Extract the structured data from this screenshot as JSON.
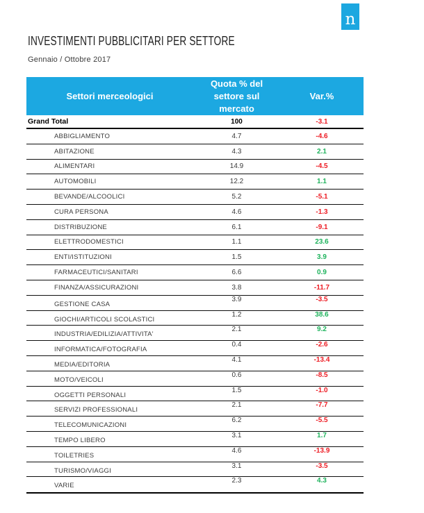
{
  "logo": {
    "letter": "n"
  },
  "title": "INVESTIMENTI PUBBLICITARI PER SETTORE",
  "subtitle": "Gennaio / Ottobre 2017",
  "colors": {
    "header_blue": "#1ca8e1",
    "brand_blue": "#1ca7e0",
    "negative": "#ed1c24",
    "positive": "#1eb35c"
  },
  "table": {
    "header": {
      "col_sector": "Settori merceologici",
      "col_share": "Quota % del settore sul mercato",
      "col_var": "Var.%"
    },
    "grand_total": {
      "label": "Grand Total",
      "share": "100",
      "var": "-3.1"
    },
    "rows": [
      {
        "label": "ABBIGLIAMENTO",
        "share": "4.7",
        "var": "-4.6",
        "offset": false
      },
      {
        "label": "ABITAZIONE",
        "share": "4.3",
        "var": "2.1",
        "offset": false
      },
      {
        "label": "ALIMENTARI",
        "share": "14.9",
        "var": "-4.5",
        "offset": false
      },
      {
        "label": "AUTOMOBILI",
        "share": "12.2",
        "var": "1.1",
        "offset": false
      },
      {
        "label": "BEVANDE/ALCOOLICI",
        "share": "5.2",
        "var": "-5.1",
        "offset": false
      },
      {
        "label": "CURA PERSONA",
        "share": "4.6",
        "var": "-1.3",
        "offset": false
      },
      {
        "label": "DISTRIBUZIONE",
        "share": "6.1",
        "var": "-9.1",
        "offset": false
      },
      {
        "label": "ELETTRODOMESTICI",
        "share": "1.1",
        "var": "23.6",
        "offset": false
      },
      {
        "label": "ENTI/ISTITUZIONI",
        "share": "1.5",
        "var": "3.9",
        "offset": false
      },
      {
        "label": "FARMACEUTICI/SANITARI",
        "share": "6.6",
        "var": "0.9",
        "offset": false
      },
      {
        "label": "FINANZA/ASSICURAZIONI",
        "share": "3.8",
        "var": "-11.7",
        "offset": false
      },
      {
        "label": "GESTIONE CASA",
        "share": "3.9",
        "var": "-3.5",
        "offset": true
      },
      {
        "label": "GIOCHI/ARTICOLI SCOLASTICI",
        "share": "1.2",
        "var": "38.6",
        "offset": true
      },
      {
        "label": "INDUSTRIA/EDILIZIA/ATTIVITA'",
        "share": "2.1",
        "var": "9.2",
        "offset": true
      },
      {
        "label": "INFORMATICA/FOTOGRAFIA",
        "share": "0.4",
        "var": "-2.6",
        "offset": true
      },
      {
        "label": "MEDIA/EDITORIA",
        "share": "4.1",
        "var": "-13.4",
        "offset": true
      },
      {
        "label": "MOTO/VEICOLI",
        "share": "0.6",
        "var": "-8.5",
        "offset": true
      },
      {
        "label": "OGGETTI PERSONALI",
        "share": "1.5",
        "var": "-1.0",
        "offset": true
      },
      {
        "label": "SERVIZI PROFESSIONALI",
        "share": "2.1",
        "var": "-7.7",
        "offset": true
      },
      {
        "label": "TELECOMUNICAZIONI",
        "share": "6.2",
        "var": "-5.5",
        "offset": true
      },
      {
        "label": "TEMPO LIBERO",
        "share": "3.1",
        "var": "1.7",
        "offset": true
      },
      {
        "label": "TOILETRIES",
        "share": "4.6",
        "var": "-13.9",
        "offset": true
      },
      {
        "label": "TURISMO/VIAGGI",
        "share": "3.1",
        "var": "-3.5",
        "offset": true
      },
      {
        "label": "VARIE",
        "share": "2.3",
        "var": "4.3",
        "offset": true
      }
    ]
  }
}
